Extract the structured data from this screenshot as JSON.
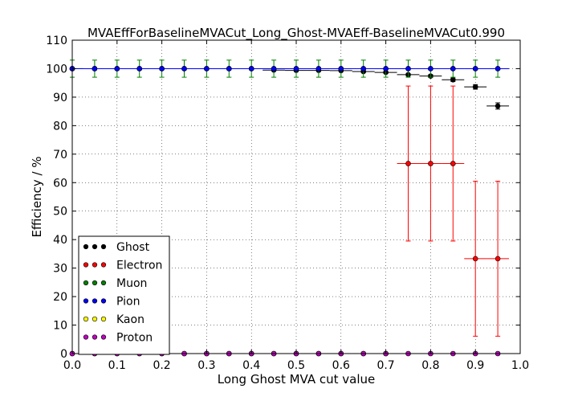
{
  "chart_data": {
    "type": "scatter",
    "title": "MVAEffForBaselineMVACut_Long_Ghost-MVAEff-BaselineMVACut0.990",
    "xlabel": "Long Ghost MVA cut value",
    "ylabel": "Efficiency / %",
    "xlim": [
      0.0,
      1.0
    ],
    "ylim": [
      0,
      110
    ],
    "xticks": [
      "0.0",
      "0.1",
      "0.2",
      "0.3",
      "0.4",
      "0.5",
      "0.6",
      "0.7",
      "0.8",
      "0.9",
      "1.0"
    ],
    "yticks": [
      "0",
      "10",
      "20",
      "30",
      "40",
      "50",
      "60",
      "70",
      "80",
      "90",
      "100",
      "110"
    ],
    "grid": true,
    "legend_position": "lower-left",
    "x": [
      0.0,
      0.05,
      0.1,
      0.15,
      0.2,
      0.25,
      0.3,
      0.35,
      0.4,
      0.45,
      0.5,
      0.55,
      0.6,
      0.65,
      0.7,
      0.75,
      0.8,
      0.85,
      0.9,
      0.95
    ],
    "x_error": 0.025,
    "series": [
      {
        "name": "Ghost",
        "color": "#000000",
        "values": [
          100,
          100,
          100,
          100,
          100,
          100,
          100,
          100,
          100,
          99.5,
          99.4,
          99.4,
          99.3,
          99.0,
          98.7,
          97.9,
          97.4,
          96.1,
          93.6,
          86.9
        ],
        "yerr": [
          0,
          0,
          0,
          0,
          0,
          0,
          0,
          0,
          0,
          0.2,
          0.2,
          0.2,
          0.2,
          0.3,
          0.3,
          0.4,
          0.5,
          0.6,
          0.8,
          1.1
        ]
      },
      {
        "name": "Electron",
        "color": "#ff0000",
        "x": [
          0.75,
          0.8,
          0.85,
          0.9,
          0.95
        ],
        "values": [
          66.7,
          66.7,
          66.7,
          33.3,
          33.3
        ],
        "yerr": [
          27.2,
          27.2,
          27.2,
          27.2,
          27.2
        ],
        "zero_points": [
          0.0,
          0.05,
          0.1,
          0.15,
          0.2,
          0.25,
          0.3,
          0.35,
          0.4,
          0.45,
          0.5,
          0.55,
          0.6,
          0.65,
          0.7
        ]
      },
      {
        "name": "Muon",
        "color": "#008000",
        "values": [
          100,
          100,
          100,
          100,
          100,
          100,
          100,
          100,
          100,
          100,
          100,
          100,
          100,
          100,
          100,
          100,
          100,
          100,
          100,
          100
        ],
        "yerr": [
          3,
          3,
          3,
          3,
          3,
          3,
          3,
          3,
          3,
          3,
          3,
          3,
          3,
          3,
          3,
          3,
          3,
          3,
          3,
          3
        ]
      },
      {
        "name": "Pion",
        "color": "#0000ff",
        "values": [
          100,
          100,
          100,
          100,
          100,
          100,
          100,
          100,
          100,
          100,
          100,
          100,
          100,
          100,
          100,
          100,
          100,
          100,
          100,
          100
        ],
        "yerr": [
          0,
          0,
          0,
          0,
          0,
          0,
          0,
          0,
          0,
          0,
          0,
          0,
          0,
          0,
          0,
          0,
          0,
          0,
          0,
          0
        ]
      },
      {
        "name": "Kaon",
        "color": "#ffff00",
        "values": []
      },
      {
        "name": "Proton",
        "color": "#bf00bf",
        "values": [
          0,
          0,
          0,
          0,
          0,
          0,
          0,
          0,
          0,
          0,
          0,
          0,
          0,
          0,
          0,
          0,
          0,
          0,
          0,
          0
        ],
        "yerr": [
          0,
          0,
          0,
          0,
          0,
          0,
          0,
          0,
          0,
          0,
          0,
          0,
          0,
          0,
          0,
          0,
          0,
          0,
          0,
          0
        ]
      }
    ]
  }
}
